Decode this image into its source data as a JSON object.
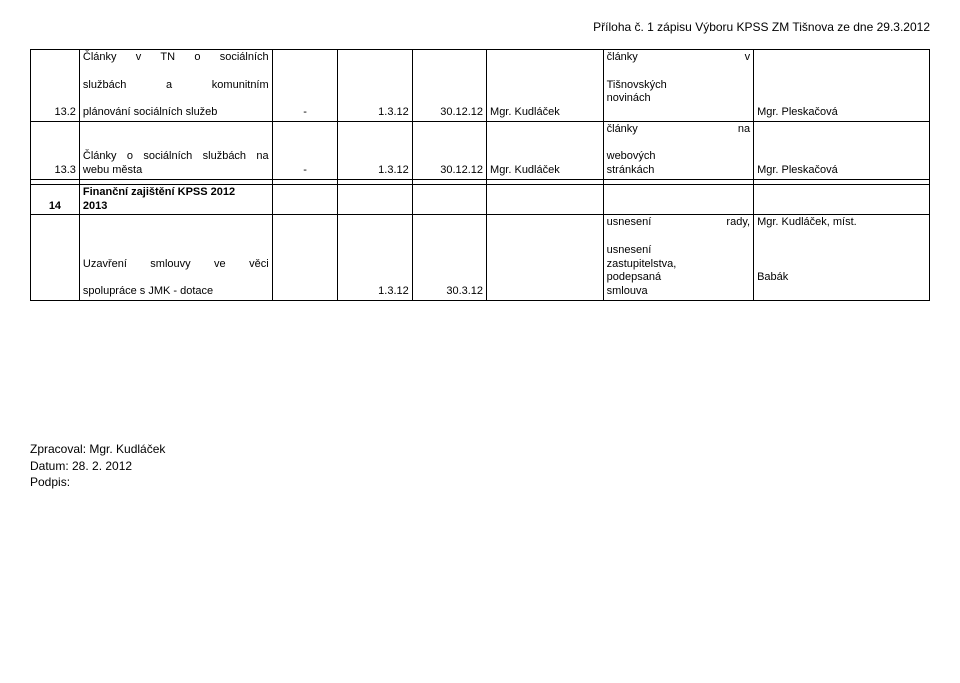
{
  "header": {
    "annex_text": "Příloha č. 1 zápisu Výboru KPSS ZM Tišnova ze dne 29.3.2012"
  },
  "rows": {
    "r1": {
      "num": "13.2",
      "desc_lines": [
        "Články v TN o sociálních",
        "službách a komunitním",
        "plánování sociálních služeb"
      ],
      "c2": "-",
      "c3": "1.3.12",
      "c4": "30.12.12",
      "c5": "Mgr. Kudláček",
      "c6_lines": [
        "články v",
        "Tišnovských",
        "novinách"
      ],
      "c7": "Mgr. Pleskačová"
    },
    "r2": {
      "num": "13.3",
      "desc_lines": [
        "Články o sociálních službách na",
        "webu města"
      ],
      "c2": "-",
      "c3": "1.3.12",
      "c4": "30.12.12",
      "c5": "Mgr. Kudláček",
      "c6_lines": [
        "články na",
        "webových",
        "stránkách"
      ],
      "c7": "Mgr. Pleskačová"
    },
    "r3": {
      "num": "14",
      "desc_lines": [
        "Finanční zajištění KPSS 2012",
        "2013"
      ]
    },
    "r4": {
      "desc_lines": [
        "Uzavření smlouvy ve věci",
        "spolupráce s JMK - dotace"
      ],
      "c3": "1.3.12",
      "c4": "30.3.12",
      "c6_lines": [
        "usnesení rady,",
        "usnesení",
        "zastupitelstva,",
        "podepsaná",
        "smlouva"
      ],
      "c7_lines": [
        "Mgr. Kudláček, míst.",
        "",
        "",
        "",
        "Babák"
      ]
    }
  },
  "footer": {
    "author": "Zpracoval: Mgr. Kudláček",
    "date": "Datum: 28. 2. 2012",
    "sign": "Podpis:"
  }
}
